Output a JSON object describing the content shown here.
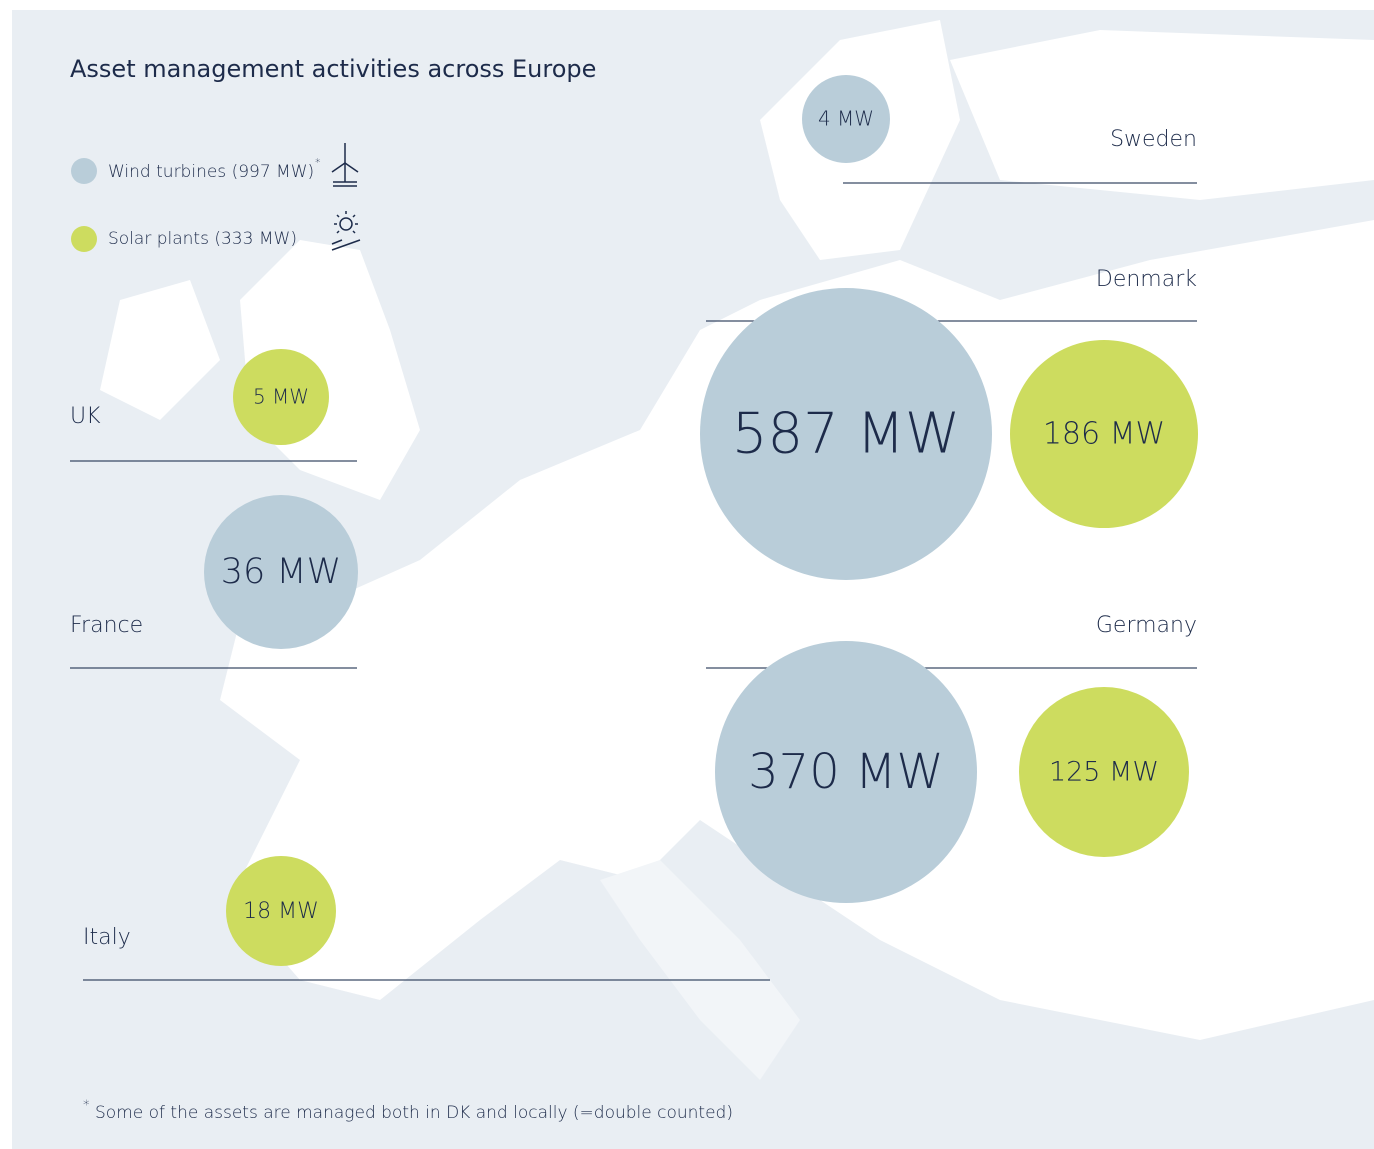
{
  "title": "Asset management activities across Europe",
  "legend": {
    "wind": "Wind turbines (997 MW)",
    "wind_note": "*",
    "solar": "Solar plants (333 MW)"
  },
  "countries": [
    {
      "name": "Sweden",
      "wind": "4 MW"
    },
    {
      "name": "Denmark",
      "wind": "587 MW",
      "solar": "186 MW"
    },
    {
      "name": "UK",
      "solar": "5 MW"
    },
    {
      "name": "France",
      "wind": "36 MW"
    },
    {
      "name": "Germany",
      "wind": "370 MW",
      "solar": "125 MW"
    },
    {
      "name": "Italy",
      "solar": "18 MW"
    }
  ],
  "footnote": {
    "marker": "*",
    "text": "Some of the assets are managed both in DK and locally (=double counted)"
  }
}
